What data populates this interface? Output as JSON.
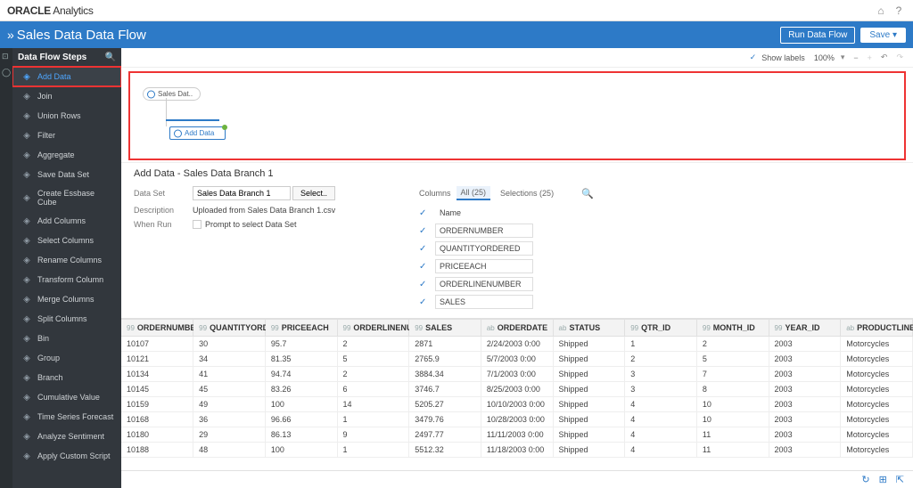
{
  "brand": {
    "bold": "ORACLE",
    "light": "Analytics"
  },
  "page_title": "Sales Data Data Flow",
  "buttons": {
    "run": "Run Data Flow",
    "save": "Save",
    "save_caret": "▾"
  },
  "toolbar": {
    "show_labels": "Show labels",
    "zoom": "100%"
  },
  "sidebar": {
    "header": "Data Flow Steps",
    "items": [
      {
        "label": "Add Data",
        "selected": true
      },
      {
        "label": "Join"
      },
      {
        "label": "Union Rows"
      },
      {
        "label": "Filter"
      },
      {
        "label": "Aggregate"
      },
      {
        "label": "Save Data Set"
      },
      {
        "label": "Create Essbase Cube"
      },
      {
        "label": "Add Columns"
      },
      {
        "label": "Select Columns"
      },
      {
        "label": "Rename Columns"
      },
      {
        "label": "Transform Column"
      },
      {
        "label": "Merge Columns"
      },
      {
        "label": "Split Columns"
      },
      {
        "label": "Bin"
      },
      {
        "label": "Group"
      },
      {
        "label": "Branch"
      },
      {
        "label": "Cumulative Value"
      },
      {
        "label": "Time Series Forecast"
      },
      {
        "label": "Analyze Sentiment"
      },
      {
        "label": "Apply Custom Script"
      }
    ]
  },
  "canvas": {
    "node1": "Sales Dat..",
    "node2": "Add Data"
  },
  "panel": {
    "title": "Add Data - Sales Data Branch 1",
    "dataset_label": "Data Set",
    "dataset_value": "Sales Data Branch 1",
    "select_btn": "Select..",
    "desc_label": "Description",
    "desc_value": "Uploaded from Sales Data Branch 1.csv",
    "whenrun_label": "When Run",
    "whenrun_value": "Prompt to select Data Set",
    "columns_label": "Columns",
    "tab_all": "All (25)",
    "tab_sel": "Selections (25)",
    "fields": [
      "Name",
      "ORDERNUMBER",
      "QUANTITYORDERED",
      "PRICEEACH",
      "ORDERLINENUMBER",
      "SALES"
    ]
  },
  "table": {
    "columns": [
      {
        "type": "99",
        "name": "ORDERNUMBER"
      },
      {
        "type": "99",
        "name": "QUANTITYORDERED"
      },
      {
        "type": "99",
        "name": "PRICEEACH"
      },
      {
        "type": "99",
        "name": "ORDERLINENUMBER"
      },
      {
        "type": "99",
        "name": "SALES"
      },
      {
        "type": "ab",
        "name": "ORDERDATE"
      },
      {
        "type": "ab",
        "name": "STATUS"
      },
      {
        "type": "99",
        "name": "QTR_ID"
      },
      {
        "type": "99",
        "name": "MONTH_ID"
      },
      {
        "type": "99",
        "name": "YEAR_ID"
      },
      {
        "type": "ab",
        "name": "PRODUCTLINE"
      }
    ],
    "rows": [
      [
        "10107",
        "30",
        "95.7",
        "2",
        "2871",
        "2/24/2003 0:00",
        "Shipped",
        "1",
        "2",
        "2003",
        "Motorcycles"
      ],
      [
        "10121",
        "34",
        "81.35",
        "5",
        "2765.9",
        "5/7/2003 0:00",
        "Shipped",
        "2",
        "5",
        "2003",
        "Motorcycles"
      ],
      [
        "10134",
        "41",
        "94.74",
        "2",
        "3884.34",
        "7/1/2003 0:00",
        "Shipped",
        "3",
        "7",
        "2003",
        "Motorcycles"
      ],
      [
        "10145",
        "45",
        "83.26",
        "6",
        "3746.7",
        "8/25/2003 0:00",
        "Shipped",
        "3",
        "8",
        "2003",
        "Motorcycles"
      ],
      [
        "10159",
        "49",
        "100",
        "14",
        "5205.27",
        "10/10/2003 0:00",
        "Shipped",
        "4",
        "10",
        "2003",
        "Motorcycles"
      ],
      [
        "10168",
        "36",
        "96.66",
        "1",
        "3479.76",
        "10/28/2003 0:00",
        "Shipped",
        "4",
        "10",
        "2003",
        "Motorcycles"
      ],
      [
        "10180",
        "29",
        "86.13",
        "9",
        "2497.77",
        "11/11/2003 0:00",
        "Shipped",
        "4",
        "11",
        "2003",
        "Motorcycles"
      ],
      [
        "10188",
        "48",
        "100",
        "1",
        "5512.32",
        "11/18/2003 0:00",
        "Shipped",
        "4",
        "11",
        "2003",
        "Motorcycles"
      ]
    ]
  }
}
